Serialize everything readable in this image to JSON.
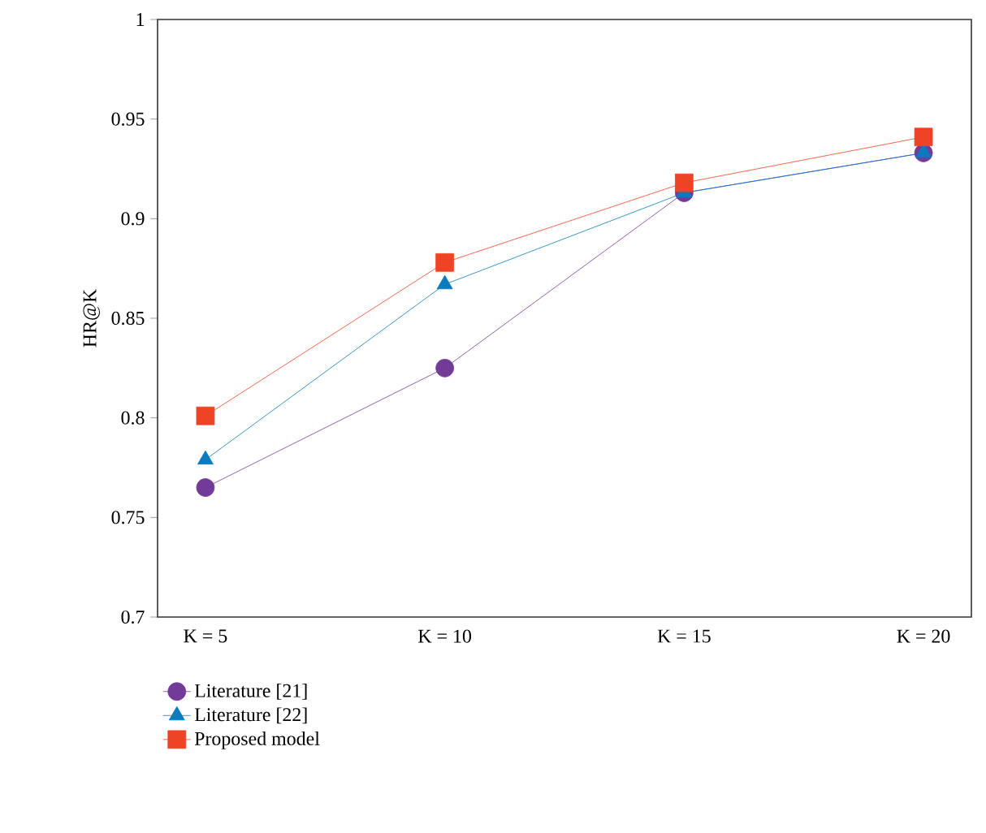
{
  "chart_data": {
    "type": "line",
    "ylabel": "HR@K",
    "categories": [
      "K = 5",
      "K = 10",
      "K = 15",
      "K = 20"
    ],
    "ylim": [
      0.7,
      1
    ],
    "yticks": [
      0.7,
      0.75,
      0.8,
      0.85,
      0.9,
      0.95,
      1
    ],
    "legend": "bottom",
    "grid": false,
    "series": [
      {
        "name": "Literature [21]",
        "color": "#723b98",
        "marker": "circle",
        "values": [
          0.765,
          0.825,
          0.913,
          0.933
        ]
      },
      {
        "name": "Literature [22]",
        "color": "#0a7bbf",
        "marker": "triangle",
        "values": [
          0.779,
          0.867,
          0.913,
          0.933
        ]
      },
      {
        "name": "Proposed model",
        "color": "#ee4325",
        "marker": "square",
        "values": [
          0.801,
          0.878,
          0.918,
          0.941
        ]
      }
    ]
  }
}
